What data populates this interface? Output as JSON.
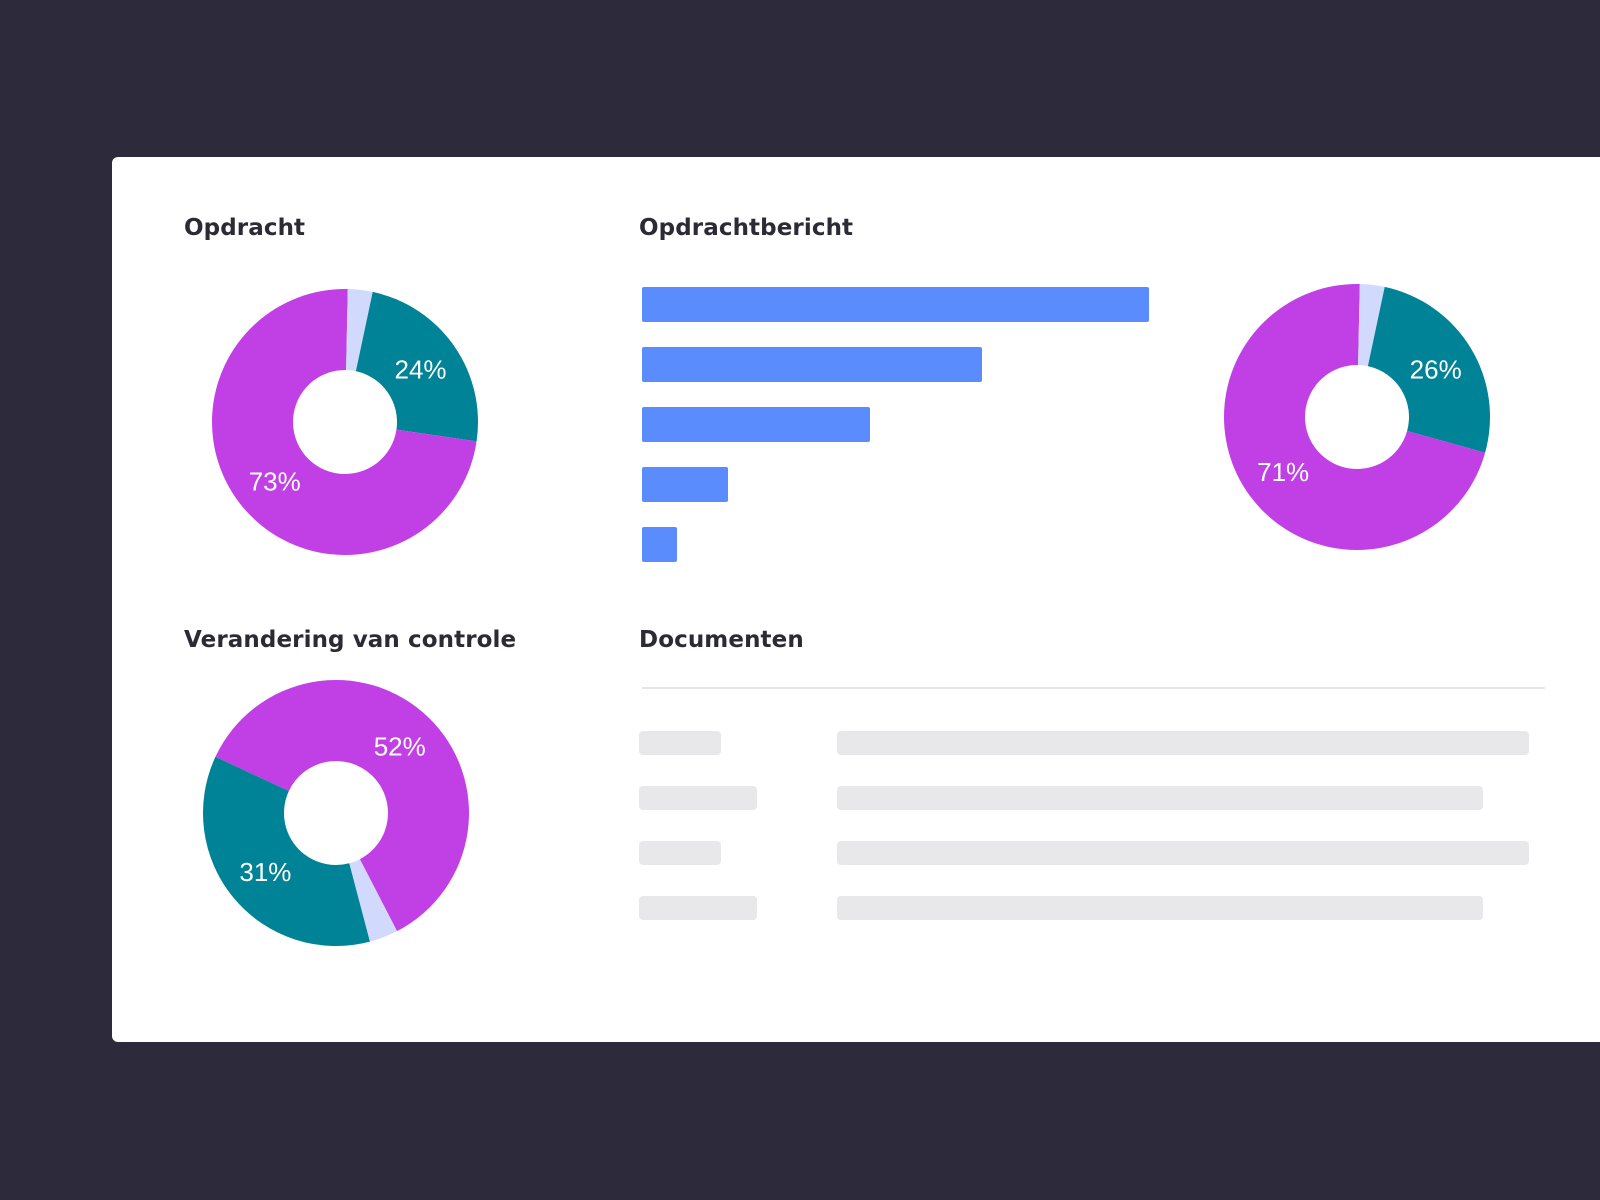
{
  "titles": {
    "opdracht": "Opdracht",
    "opdrachtbericht": "Opdrachtbericht",
    "verandering": "Verandering van controle",
    "documenten": "Documenten"
  },
  "colors": {
    "background": "#2c2a3b",
    "purple": "#c040e6",
    "teal": "#008396",
    "lavender": "#d1dafc",
    "blue": "#5b8cfd",
    "placeholder": "#e8e8eb"
  },
  "chart_data": [
    {
      "type": "pie",
      "title": "Opdracht",
      "slices": [
        {
          "value": 24,
          "label": "24%",
          "color": "#008396"
        },
        {
          "value": 73,
          "label": "73%",
          "color": "#c040e6"
        },
        {
          "value": 3,
          "label": "",
          "color": "#d1dafc"
        }
      ]
    },
    {
      "type": "bar",
      "orientation": "horizontal",
      "title": "Opdrachtbericht",
      "categories": [
        "",
        "",
        "",
        "",
        ""
      ],
      "values": [
        100,
        67,
        45,
        17,
        7
      ],
      "color": "#5b8cfd"
    },
    {
      "type": "pie",
      "title": "",
      "slices": [
        {
          "value": 26,
          "label": "26%",
          "color": "#008396"
        },
        {
          "value": 71,
          "label": "71%",
          "color": "#c040e6"
        },
        {
          "value": 3,
          "label": "",
          "color": "#d1dafc"
        }
      ]
    },
    {
      "type": "pie",
      "title": "Verandering van controle",
      "slices": [
        {
          "value": 52,
          "label": "52%",
          "color": "#c040e6"
        },
        {
          "value": 3,
          "label": "",
          "color": "#d1dafc"
        },
        {
          "value": 31,
          "label": "31%",
          "color": "#008396"
        }
      ]
    }
  ],
  "documents": {
    "rows": [
      {
        "label_fill": 0.09,
        "value_fill": 0.76
      },
      {
        "label_fill": 0.13,
        "value_fill": 0.71
      },
      {
        "label_fill": 0.09,
        "value_fill": 0.76
      },
      {
        "label_fill": 0.13,
        "value_fill": 0.71
      }
    ]
  }
}
